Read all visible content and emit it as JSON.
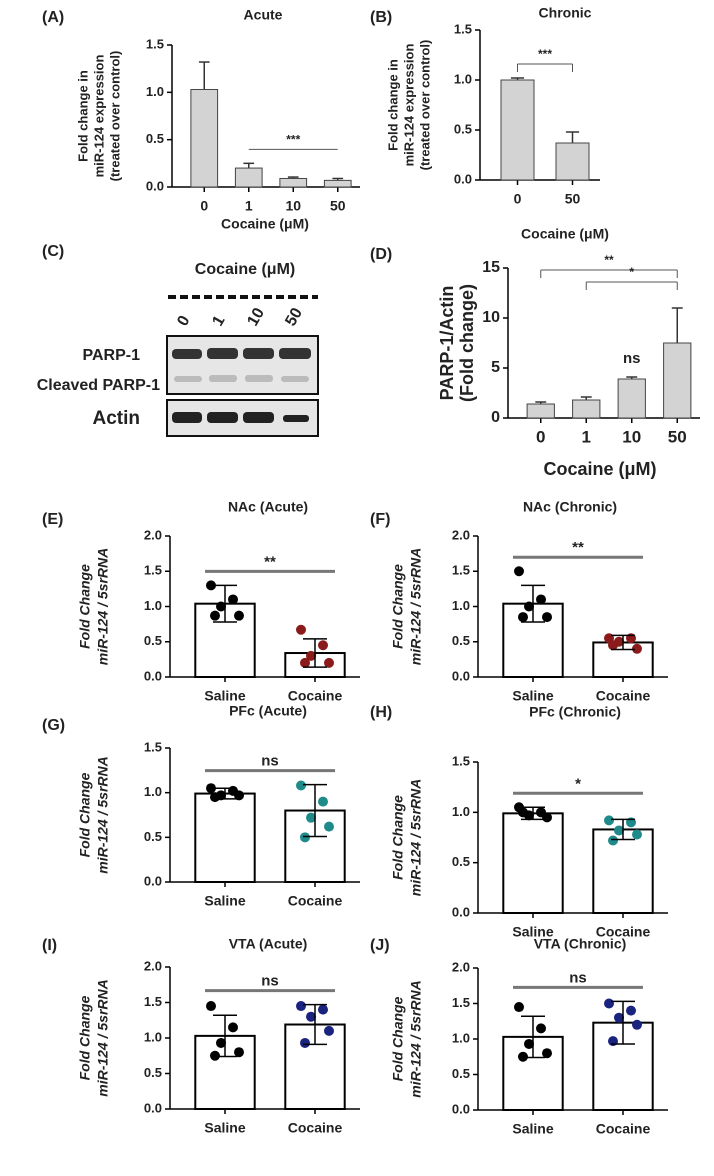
{
  "chart_data": [
    {
      "type": "bar",
      "panel": "(A)",
      "title": "Acute",
      "ylabel": [
        "Fold change in",
        "miR-124 expression",
        "(treated over control)"
      ],
      "xlabel": "Cocaine (μM)",
      "categories": [
        "0",
        "1",
        "10",
        "50"
      ],
      "values": [
        1.03,
        0.2,
        0.09,
        0.07
      ],
      "errors": [
        0.29,
        0.05,
        0.015,
        0.02
      ],
      "color": "#d3d3d3",
      "ylim": [
        0,
        1.5
      ],
      "yticks": [
        {
          "value": 0,
          "label": "0.0"
        },
        0.5,
        {
          "value": 1,
          "label": "1.0"
        },
        1.5
      ],
      "annotations": [
        {
          "text": "***",
          "from": 1,
          "to": 3
        }
      ]
    },
    {
      "type": "bar",
      "panel": "(B)",
      "title": "Chronic",
      "ylabel": [
        "Fold change in",
        "miR-124 expression",
        "(treated over control)"
      ],
      "xlabel": "Cocaine (μM)",
      "categories": [
        "0",
        "50"
      ],
      "values": [
        1.0,
        0.37
      ],
      "errors": [
        0.02,
        0.11
      ],
      "color": "#d3d3d3",
      "ylim": [
        0,
        1.5
      ],
      "yticks": [
        {
          "value": 0,
          "label": "0.0"
        },
        0.5,
        {
          "value": 1,
          "label": "1.0"
        },
        1.5
      ],
      "annotations": [
        {
          "text": "***",
          "from": 0,
          "to": 1,
          "bracket": true
        }
      ]
    },
    {
      "type": "bar",
      "panel": "(D)",
      "ylabel": [
        "PARP-1/Actin",
        "(Fold change)"
      ],
      "xlabel": "Cocaine (μM)",
      "categories": [
        "0",
        "1",
        "10",
        "50"
      ],
      "values": [
        1.4,
        1.8,
        3.9,
        7.5
      ],
      "errors": [
        0.2,
        0.3,
        0.2,
        3.5
      ],
      "color": "#d3d3d3",
      "ylim": [
        0,
        15
      ],
      "yticks": [
        0,
        5,
        10,
        15
      ],
      "annotations": [
        {
          "text": "**",
          "from": 0,
          "to": 3,
          "bracket": true
        },
        {
          "text": "*",
          "from": 1,
          "to": 3,
          "bracket": true
        },
        {
          "text": "ns",
          "from": 2,
          "to": 2
        }
      ]
    },
    {
      "type": "dotbar",
      "panel": "(E)",
      "title": "NAc (Acute)",
      "ylabel": [
        "Fold Change",
        "miR-124 / 5srRNA"
      ],
      "categories": [
        "Saline",
        "Cocaine"
      ],
      "values": [
        1.04,
        0.34
      ],
      "errors": [
        0.26,
        0.2
      ],
      "color": "#ffffff",
      "points": [
        [
          1.3,
          1.1,
          1.0,
          0.87,
          0.87
        ],
        [
          0.67,
          0.45,
          0.3,
          0.2,
          0.2
        ]
      ],
      "point_colors": [
        "#000000",
        "#8b1a1a"
      ],
      "ylim": [
        0,
        2
      ],
      "yticks": [
        {
          "value": 0,
          "label": "0.0"
        },
        0.5,
        {
          "value": 1,
          "label": "1.0"
        },
        1.5,
        {
          "value": 2,
          "label": "2.0"
        }
      ],
      "annotations": [
        {
          "text": "**",
          "from": 0,
          "to": 1
        }
      ]
    },
    {
      "type": "dotbar",
      "panel": "(F)",
      "title": "NAc (Chronic)",
      "ylabel": [
        "Fold Change",
        "miR-124 / 5srRNA"
      ],
      "categories": [
        "Saline",
        "Cocaine"
      ],
      "values": [
        1.04,
        0.49
      ],
      "errors": [
        0.26,
        0.1
      ],
      "color": "#ffffff",
      "points": [
        [
          1.5,
          1.1,
          1.0,
          0.85,
          0.85
        ],
        [
          0.55,
          0.55,
          0.5,
          0.4,
          0.45
        ]
      ],
      "point_colors": [
        "#000000",
        "#8b1a1a"
      ],
      "ylim": [
        0,
        2
      ],
      "yticks": [
        {
          "value": 0,
          "label": "0.0"
        },
        0.5,
        {
          "value": 1,
          "label": "1.0"
        },
        1.5,
        {
          "value": 2,
          "label": "2.0"
        }
      ],
      "annotations": [
        {
          "text": "**",
          "from": 0,
          "to": 1
        }
      ]
    },
    {
      "type": "dotbar",
      "panel": "(G)",
      "title": "PFc (Acute)",
      "ylabel": [
        "Fold Change",
        "miR-124 / 5srRNA"
      ],
      "categories": [
        "Saline",
        "Cocaine"
      ],
      "values": [
        0.99,
        0.8
      ],
      "errors": [
        0.06,
        0.29
      ],
      "color": "#ffffff",
      "points": [
        [
          1.05,
          1.02,
          0.97,
          0.97,
          0.95
        ],
        [
          1.08,
          0.9,
          0.72,
          0.62,
          0.5
        ]
      ],
      "point_colors": [
        "#000000",
        "#1f8a8a"
      ],
      "ylim": [
        0,
        1.5
      ],
      "yticks": [
        {
          "value": 0,
          "label": "0.0"
        },
        0.5,
        {
          "value": 1,
          "label": "1.0"
        },
        1.5
      ],
      "annotations": [
        {
          "text": "ns",
          "from": 0,
          "to": 1
        }
      ]
    },
    {
      "type": "dotbar",
      "panel": "(H)",
      "title": "PFc (Chronic)",
      "ylabel": [
        "Fold Change",
        "miR-124 / 5srRNA"
      ],
      "categories": [
        "Saline",
        "Cocaine"
      ],
      "values": [
        0.99,
        0.83
      ],
      "errors": [
        0.06,
        0.1
      ],
      "color": "#ffffff",
      "points": [
        [
          1.05,
          1.0,
          0.97,
          0.95,
          1.0
        ],
        [
          0.92,
          0.9,
          0.82,
          0.78,
          0.72
        ]
      ],
      "point_colors": [
        "#000000",
        "#1f8a8a"
      ],
      "ylim": [
        0,
        1.5
      ],
      "yticks": [
        {
          "value": 0,
          "label": "0.0"
        },
        0.5,
        {
          "value": 1,
          "label": "1.0"
        },
        1.5
      ],
      "annotations": [
        {
          "text": "*",
          "from": 0,
          "to": 1
        }
      ]
    },
    {
      "type": "dotbar",
      "panel": "(I)",
      "title": "VTA (Acute)",
      "ylabel": [
        "Fold Change",
        "miR-124 / 5srRNA"
      ],
      "categories": [
        "Saline",
        "Cocaine"
      ],
      "values": [
        1.03,
        1.19
      ],
      "errors": [
        0.29,
        0.28
      ],
      "color": "#ffffff",
      "points": [
        [
          1.45,
          1.15,
          0.93,
          0.8,
          0.75
        ],
        [
          1.45,
          1.4,
          1.3,
          1.1,
          0.93
        ]
      ],
      "point_colors": [
        "#000000",
        "#1a237e"
      ],
      "ylim": [
        0,
        2
      ],
      "yticks": [
        {
          "value": 0,
          "label": "0.0"
        },
        0.5,
        {
          "value": 1,
          "label": "1.0"
        },
        1.5,
        {
          "value": 2,
          "label": "2.0"
        }
      ],
      "annotations": [
        {
          "text": "ns",
          "from": 0,
          "to": 1
        }
      ]
    },
    {
      "type": "dotbar",
      "panel": "(J)",
      "title": "VTA (Chronic)",
      "ylabel": [
        "Fold Change",
        "miR-124 / 5srRNA"
      ],
      "categories": [
        "Saline",
        "Cocaine"
      ],
      "values": [
        1.03,
        1.23
      ],
      "errors": [
        0.29,
        0.3
      ],
      "color": "#ffffff",
      "points": [
        [
          1.45,
          1.15,
          0.93,
          0.8,
          0.75
        ],
        [
          1.5,
          1.4,
          1.3,
          1.2,
          0.97
        ]
      ],
      "point_colors": [
        "#000000",
        "#1a237e"
      ],
      "ylim": [
        0,
        2
      ],
      "yticks": [
        {
          "value": 0,
          "label": "0.0"
        },
        0.5,
        {
          "value": 1,
          "label": "1.0"
        },
        1.5,
        {
          "value": 2,
          "label": "2.0"
        }
      ],
      "annotations": [
        {
          "text": "ns",
          "from": 0,
          "to": 1
        }
      ]
    }
  ],
  "blot": {
    "panel": "(C)",
    "title": "Cocaine (μM)",
    "lanes": [
      "0",
      "1",
      "10",
      "50"
    ],
    "bands": [
      "PARP-1",
      "Cleaved PARP-1",
      "Actin"
    ]
  }
}
